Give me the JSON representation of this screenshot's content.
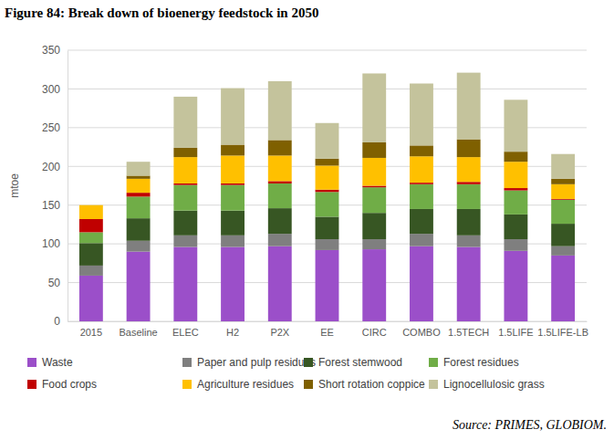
{
  "chart_data": {
    "type": "bar",
    "title": "Figure 84: Break down of bioenergy feedstock in 2050",
    "y_label": "mtoe",
    "source": "Source: PRIMES, GLOBIOM.",
    "stacked": true,
    "grid": true,
    "legend": "bottom",
    "categories": [
      "2015",
      "Baseline",
      "ELEC",
      "H2",
      "P2X",
      "EE",
      "CIRC",
      "COMBO",
      "1.5TECH",
      "1.5LIFE",
      "1.5LIFE-LB"
    ],
    "series": [
      {
        "name": "Waste",
        "color": "#9b4fc9",
        "values": [
          59,
          90,
          96,
          96,
          97,
          92,
          93,
          97,
          96,
          91,
          85
        ]
      },
      {
        "name": "Paper and pulp residues",
        "color": "#7f7f7f",
        "values": [
          13,
          14,
          15,
          15,
          16,
          14,
          13,
          16,
          15,
          15,
          12
        ]
      },
      {
        "name": "Forest stemwood",
        "color": "#375623",
        "values": [
          29,
          29,
          32,
          32,
          33,
          29,
          34,
          32,
          34,
          32,
          29
        ]
      },
      {
        "name": "Forest residues",
        "color": "#70ad47",
        "values": [
          14,
          28,
          33,
          33,
          32,
          32,
          33,
          32,
          32,
          31,
          31
        ]
      },
      {
        "name": "Food crops",
        "color": "#c00000",
        "values": [
          17,
          5,
          2,
          2,
          3,
          3,
          2,
          2,
          3,
          3,
          1
        ]
      },
      {
        "name": "Agriculture residues",
        "color": "#ffc000",
        "values": [
          18,
          18,
          34,
          36,
          33,
          31,
          36,
          34,
          32,
          34,
          19
        ]
      },
      {
        "name": "Short rotation coppice",
        "color": "#7f6000",
        "values": [
          0,
          4,
          12,
          14,
          20,
          9,
          20,
          14,
          23,
          13,
          7
        ]
      },
      {
        "name": "Lignocellulosic grass",
        "color": "#c4c39c",
        "values": [
          0,
          18,
          66,
          73,
          76,
          46,
          89,
          80,
          86,
          67,
          32
        ]
      }
    ],
    "ylim": [
      0,
      350
    ],
    "yticks": [
      0,
      50,
      100,
      150,
      200,
      250,
      300,
      350
    ]
  }
}
